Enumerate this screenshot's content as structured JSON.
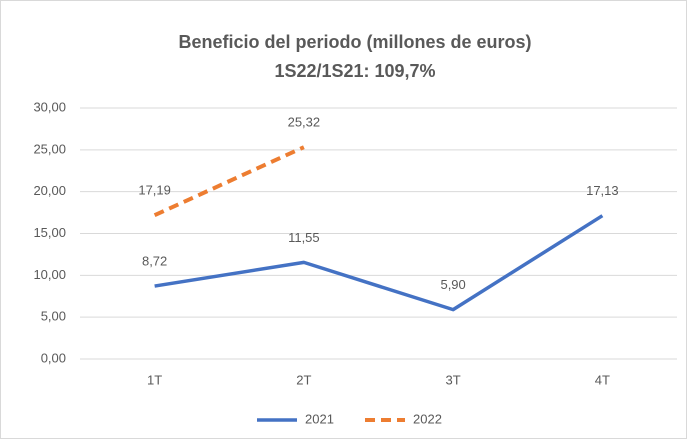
{
  "chart_data": {
    "type": "line",
    "title": "Beneficio del periodo (millones de euros)",
    "subtitle": "1S22/1S21: 109,7%",
    "categories": [
      "1T",
      "2T",
      "3T",
      "4T"
    ],
    "series": [
      {
        "name": "2021",
        "color": "#4472c4",
        "dashed": false,
        "values": [
          8.72,
          11.55,
          5.9,
          17.13
        ],
        "value_labels": [
          "8,72",
          "11,55",
          "5,90",
          "17,13"
        ]
      },
      {
        "name": "2022",
        "color": "#ed7d31",
        "dashed": true,
        "values": [
          17.19,
          25.32,
          null,
          null
        ],
        "value_labels": [
          "17,19",
          "25,32",
          null,
          null
        ]
      }
    ],
    "ylim": [
      0,
      30
    ],
    "yticks": [
      {
        "value": 0,
        "label": "0,00"
      },
      {
        "value": 5,
        "label": "5,00"
      },
      {
        "value": 10,
        "label": "10,00"
      },
      {
        "value": 15,
        "label": "15,00"
      },
      {
        "value": 20,
        "label": "20,00"
      },
      {
        "value": 25,
        "label": "25,00"
      },
      {
        "value": 30,
        "label": "30,00"
      }
    ],
    "grid": true,
    "legend": "bottom"
  }
}
